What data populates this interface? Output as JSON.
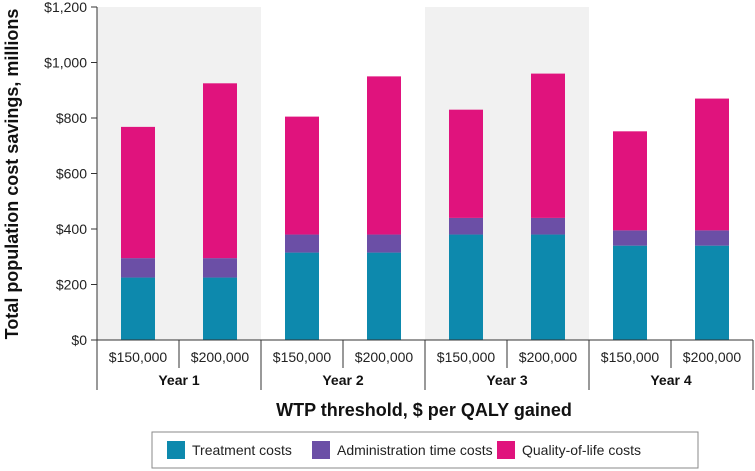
{
  "chart_data": {
    "type": "bar",
    "stacked": true,
    "title": "",
    "xlabel": "WTP threshold, $ per QALY gained",
    "ylabel": "Total population cost savings, millions",
    "ylim": [
      0,
      1200
    ],
    "y_ticks": [
      0,
      200,
      400,
      600,
      800,
      1000,
      1200
    ],
    "y_tick_labels": [
      "$0",
      "$200",
      "$400",
      "$600",
      "$800",
      "$1,000",
      "$1,200"
    ],
    "groups": [
      "Year 1",
      "Year 2",
      "Year 3",
      "Year 4"
    ],
    "categories": [
      "$150,000",
      "$200,000",
      "$150,000",
      "$200,000",
      "$150,000",
      "$200,000",
      "$150,000",
      "$200,000"
    ],
    "group_shaded": [
      true,
      false,
      true,
      false
    ],
    "legend_position": "bottom",
    "series": [
      {
        "name": "Treatment costs",
        "color": "#0d89ad",
        "values": [
          225,
          225,
          315,
          315,
          380,
          380,
          340,
          340
        ]
      },
      {
        "name": "Administration time costs",
        "color": "#6b4fa6",
        "values": [
          70,
          70,
          65,
          65,
          60,
          60,
          55,
          55
        ]
      },
      {
        "name": "Quality-of-life costs",
        "color": "#e0137d",
        "values": [
          473,
          630,
          425,
          570,
          390,
          520,
          357,
          475
        ]
      }
    ]
  }
}
